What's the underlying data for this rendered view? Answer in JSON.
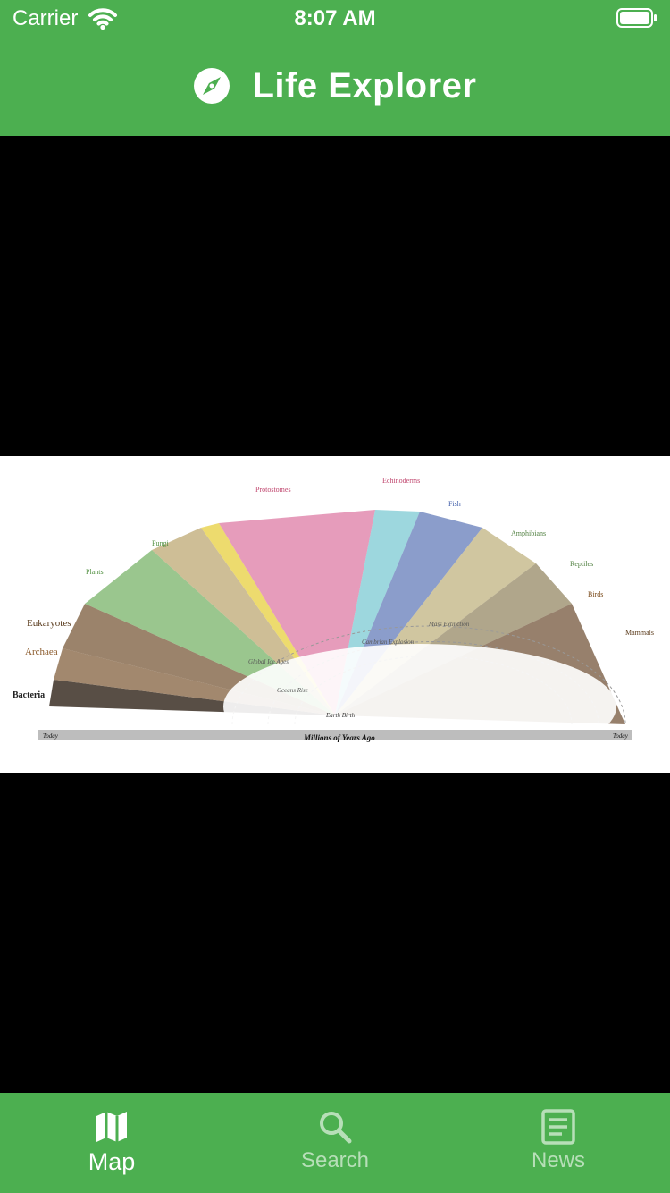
{
  "status_bar": {
    "carrier": "Carrier",
    "time": "8:07 AM"
  },
  "nav": {
    "title": "Life Explorer",
    "icon": "compass-icon"
  },
  "map": {
    "alt": "Tree of life evolution chart",
    "labels": {
      "bacteria": "Bacteria",
      "archaea": "Archaea",
      "eukaryotes": "Eukaryotes",
      "plants": "Plants",
      "fungi": "Fungi",
      "protostomes": "Protostomes",
      "echinoderms": "Echinoderms",
      "fish": "Fish",
      "amphibians": "Amphibians",
      "reptiles": "Reptiles",
      "birds": "Birds",
      "mammals": "Mammals",
      "axis": "Millions of Years Ago",
      "today_left": "Today",
      "today_right": "Today",
      "earth_birth": "Earth Birth",
      "oceans_rise": "Oceans Rise",
      "global_ice_ages": "Global Ice Ages",
      "cambrian": "Cambrian Explosion",
      "mass_extinction": "Mass Extinction"
    }
  },
  "tabs": [
    {
      "label": "Map",
      "icon": "map-icon",
      "active": true
    },
    {
      "label": "Search",
      "icon": "search-icon",
      "active": false
    },
    {
      "label": "News",
      "icon": "news-icon",
      "active": false
    }
  ],
  "colors": {
    "accent": "#4caf50",
    "inactive": "#b7dfb8"
  }
}
